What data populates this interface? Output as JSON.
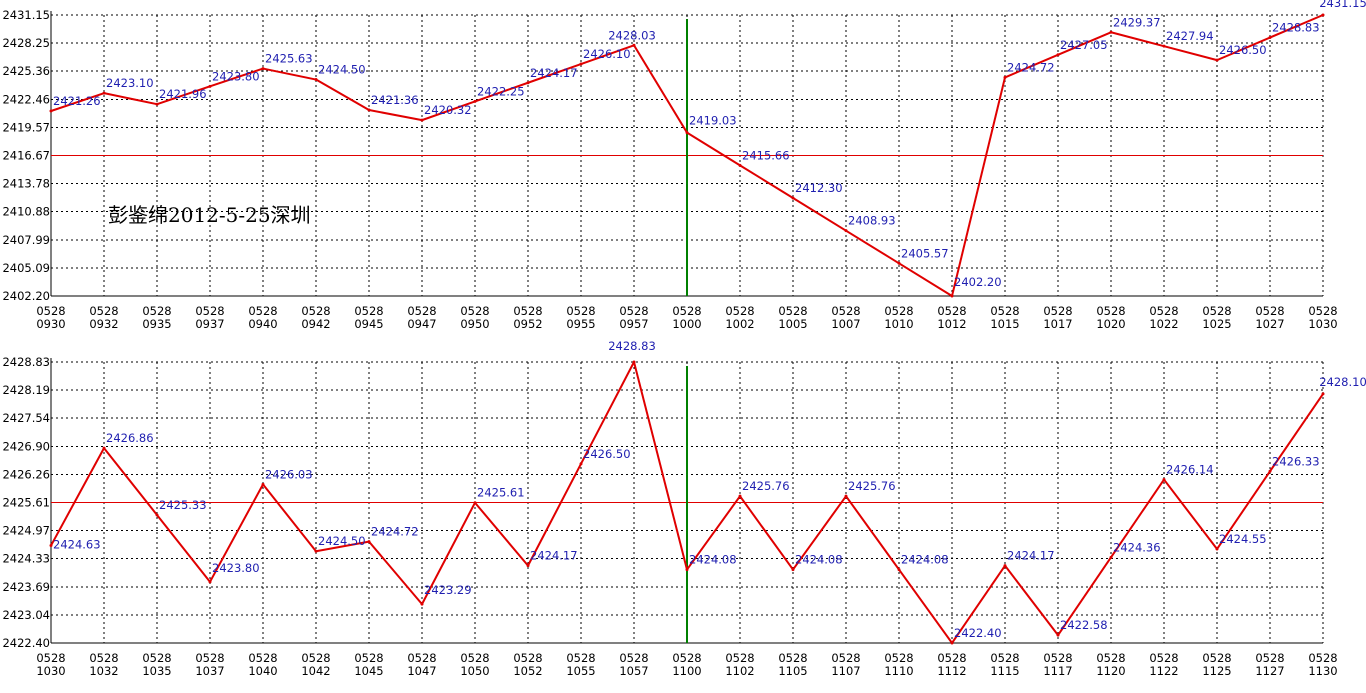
{
  "watermark": "彭鉴绵2012-5-25深圳",
  "colors": {
    "line": "#e00000",
    "grid": "#000000",
    "ref_line": "#e00000",
    "marker_line": "#008000",
    "label_text": "#1f1fb0",
    "tick_text": "#000000"
  },
  "chart_data": [
    {
      "type": "line",
      "grid": true,
      "x": [
        "0528\n0930",
        "0528\n0932",
        "0528\n0935",
        "0528\n0937",
        "0528\n0940",
        "0528\n0942",
        "0528\n0945",
        "0528\n0947",
        "0528\n0950",
        "0528\n0952",
        "0528\n0955",
        "0528\n0957",
        "0528\n1000",
        "0528\n1002",
        "0528\n1005",
        "0528\n1007",
        "0528\n1010",
        "0528\n1012",
        "0528\n1015",
        "0528\n1017",
        "0528\n1020",
        "0528\n1022",
        "0528\n1025",
        "0528\n1027",
        "0528\n1030"
      ],
      "values": [
        2421.26,
        2423.1,
        2421.96,
        2423.8,
        2425.63,
        2424.5,
        2421.36,
        2420.32,
        2422.25,
        2424.17,
        2426.1,
        2428.03,
        2419.03,
        2415.66,
        2412.3,
        2408.93,
        2405.57,
        2402.2,
        2424.72,
        2427.05,
        2429.37,
        2427.94,
        2426.5,
        2428.83,
        2431.15
      ],
      "labels": [
        "2421.26",
        "2423.10",
        "2421.96",
        "2423.80",
        "2425.63",
        "2424.50",
        "2421.36",
        "2420.32",
        "2422.25",
        "2424.17",
        "2426.10",
        "2428.03",
        "2419.03",
        "2415.66",
        "2412.30",
        "2408.93",
        "2405.57",
        "2402.20",
        "2424.72",
        "2427.05",
        "2429.37",
        "2427.94",
        "2426.50",
        "2428.83",
        "2431.15"
      ],
      "yticks": [
        "2431.15",
        "2428.25",
        "2425.36",
        "2422.46",
        "2419.57",
        "2416.67",
        "2413.78",
        "2410.88",
        "2407.99",
        "2405.09",
        "2402.20"
      ],
      "ylim": [
        2402.2,
        2431.15
      ],
      "ref_value": 2416.67,
      "marker_index": 12
    },
    {
      "type": "line",
      "grid": true,
      "x": [
        "0528\n1030",
        "0528\n1032",
        "0528\n1035",
        "0528\n1037",
        "0528\n1040",
        "0528\n1042",
        "0528\n1045",
        "0528\n1047",
        "0528\n1050",
        "0528\n1052",
        "0528\n1055",
        "0528\n1057",
        "0528\n1100",
        "0528\n1102",
        "0528\n1105",
        "0528\n1107",
        "0528\n1110",
        "0528\n1112",
        "0528\n1115",
        "0528\n1117",
        "0528\n1120",
        "0528\n1122",
        "0528\n1125",
        "0528\n1127",
        "0528\n1130"
      ],
      "values": [
        2424.63,
        2426.86,
        2425.33,
        2423.8,
        2426.03,
        2424.5,
        2424.72,
        2423.29,
        2425.61,
        2424.17,
        2426.5,
        2428.83,
        2424.08,
        2425.76,
        2424.08,
        2425.76,
        2424.08,
        2422.4,
        2424.17,
        2422.58,
        2424.36,
        2426.14,
        2424.55,
        2426.33,
        2428.1
      ],
      "labels": [
        "2424.63",
        "2426.86",
        "2425.33",
        "2423.80",
        "2426.03",
        "2424.50",
        "2424.72",
        "2423.29",
        "2425.61",
        "2424.17",
        "2426.50",
        "2428.83",
        "2424.08",
        "2425.76",
        "2424.08",
        "2425.76",
        "2424.08",
        "2422.40",
        "2424.17",
        "2422.58",
        "2424.36",
        "2426.14",
        "2424.55",
        "2426.33",
        "2428.10"
      ],
      "yticks": [
        "2428.83",
        "2428.19",
        "2427.54",
        "2426.90",
        "2426.26",
        "2425.61",
        "2424.97",
        "2424.33",
        "2423.69",
        "2423.04",
        "2422.40"
      ],
      "ylim": [
        2422.4,
        2428.83
      ],
      "ref_value": 2425.61,
      "marker_index": 12
    }
  ]
}
